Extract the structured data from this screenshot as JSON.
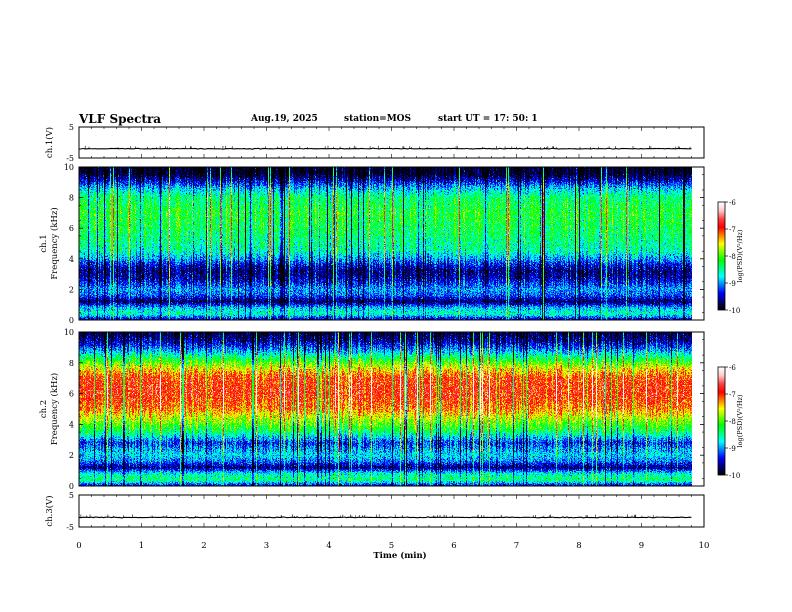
{
  "header": {
    "title": "VLF Spectra",
    "date": "Aug.19, 2025",
    "station": "station=MOS",
    "start": "start  UT =   17: 50: 1"
  },
  "chart_data": [
    {
      "type": "line",
      "name": "ch1-voltage",
      "ylabel": "ch.1(V)",
      "ylim": [
        -5,
        5
      ],
      "y_ticks": [
        "5",
        "-5"
      ],
      "x": [
        0,
        9.8
      ],
      "values": [
        -2,
        -2
      ]
    },
    {
      "type": "heatmap",
      "name": "ch1-spectrogram",
      "ylabel": "ch.1\nFrequency (kHz)",
      "ylim": [
        0,
        10
      ],
      "xlim": [
        0,
        10
      ],
      "data_end_min": 9.8,
      "y_ticks": [
        "0",
        "2",
        "4",
        "6",
        "8",
        "10"
      ],
      "profile": {
        "freq_khz": [
          0.0,
          0.4,
          0.8,
          1.2,
          1.6,
          2.0,
          2.4,
          2.8,
          3.2,
          3.6,
          4.0,
          4.5,
          5.0,
          6.0,
          7.0,
          8.0,
          8.6,
          9.2,
          9.6,
          10.0
        ],
        "log_psd": [
          -9.6,
          -8.6,
          -8.9,
          -9.8,
          -9.2,
          -9.0,
          -9.3,
          -9.6,
          -9.7,
          -9.4,
          -9.0,
          -8.6,
          -8.5,
          -8.3,
          -8.2,
          -8.4,
          -8.9,
          -9.6,
          -10.0,
          -10.0
        ]
      }
    },
    {
      "type": "heatmap",
      "name": "ch2-spectrogram",
      "ylabel": "ch.2\nFrequency (kHz)",
      "ylim": [
        0,
        10
      ],
      "xlim": [
        0,
        10
      ],
      "data_end_min": 9.8,
      "y_ticks": [
        "0",
        "2",
        "4",
        "6",
        "8",
        "10"
      ],
      "profile": {
        "freq_khz": [
          0.0,
          0.4,
          0.8,
          1.2,
          1.6,
          2.0,
          2.4,
          2.8,
          3.2,
          3.6,
          4.0,
          4.5,
          5.0,
          6.0,
          7.0,
          7.6,
          8.2,
          8.8,
          9.4,
          10.0
        ],
        "log_psd": [
          -9.5,
          -8.4,
          -8.7,
          -9.7,
          -9.1,
          -8.8,
          -9.0,
          -9.3,
          -8.8,
          -8.3,
          -8.0,
          -7.6,
          -7.2,
          -6.9,
          -7.0,
          -7.5,
          -8.2,
          -9.0,
          -9.6,
          -9.9
        ]
      }
    },
    {
      "type": "line",
      "name": "ch3-voltage",
      "ylabel": "ch.3(V)",
      "ylim": [
        -5,
        5
      ],
      "y_ticks": [
        "5",
        "-5"
      ],
      "x": [
        0,
        9.8
      ],
      "values": [
        -2,
        -2
      ]
    }
  ],
  "x_axis": {
    "label": "Time  (min)",
    "range": [
      0,
      10
    ],
    "ticks": [
      "0",
      "1",
      "2",
      "3",
      "4",
      "5",
      "6",
      "7",
      "8",
      "9",
      "10"
    ]
  },
  "colorbar": {
    "label": "log(PSD)(V²/Hz)",
    "range": [
      -10,
      -6
    ],
    "ticks": [
      "-6",
      "-7",
      "-8",
      "-9",
      "-10"
    ]
  },
  "colors": {
    "colormap": [
      "#000000",
      "#00007f",
      "#0000ff",
      "#0080ff",
      "#00ffff",
      "#00ff80",
      "#00ff00",
      "#80ff00",
      "#ffff00",
      "#ff8000",
      "#ff0000",
      "#ff4040",
      "#ffc8c8",
      "#ffffff"
    ],
    "trace": "#000000"
  }
}
